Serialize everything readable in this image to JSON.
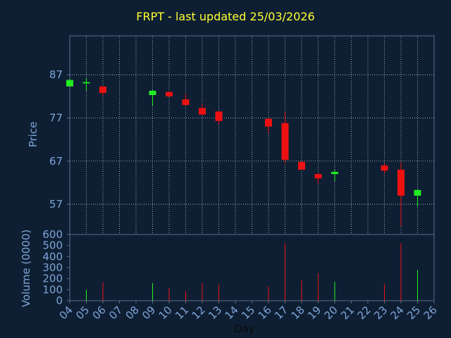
{
  "chart_data": {
    "type": "candlestick",
    "title": "FRPT - last updated 25/03/2026",
    "xlabel": "Day",
    "price_panel": {
      "ylabel": "Price",
      "ylim": [
        50,
        96
      ],
      "yticks": [
        57,
        67,
        77,
        87
      ],
      "grid": true
    },
    "volume_panel": {
      "ylabel": "Volume (0000)",
      "ylim": [
        0,
        600
      ],
      "yticks": [
        0,
        100,
        200,
        300,
        400,
        500,
        600
      ],
      "grid": false
    },
    "x_ticks": [
      "04",
      "05",
      "06",
      "07",
      "08",
      "09",
      "10",
      "11",
      "12",
      "13",
      "14",
      "15",
      "16",
      "17",
      "18",
      "19",
      "20",
      "21",
      "22",
      "23",
      "24",
      "25",
      "26"
    ],
    "candles": [
      {
        "day": "04",
        "open": 84.3,
        "close": 85.8,
        "high": 86.0,
        "low": 84.3,
        "volume": 0
      },
      {
        "day": "05",
        "open": 85.0,
        "close": 85.3,
        "high": 86.3,
        "low": 83.3,
        "volume": 100
      },
      {
        "day": "06",
        "open": 84.3,
        "close": 82.8,
        "high": 84.3,
        "low": 82.0,
        "volume": 165
      },
      {
        "day": "09",
        "open": 82.3,
        "close": 83.3,
        "high": 83.5,
        "low": 79.8,
        "volume": 160
      },
      {
        "day": "10",
        "open": 83.0,
        "close": 82.0,
        "high": 83.3,
        "low": 81.8,
        "volume": 115
      },
      {
        "day": "11",
        "open": 81.3,
        "close": 80.0,
        "high": 82.5,
        "low": 79.8,
        "volume": 85
      },
      {
        "day": "12",
        "open": 79.3,
        "close": 77.8,
        "high": 80.3,
        "low": 77.5,
        "volume": 160
      },
      {
        "day": "13",
        "open": 78.5,
        "close": 76.3,
        "high": 78.5,
        "low": 75.5,
        "volume": 150
      },
      {
        "day": "16",
        "open": 76.8,
        "close": 75.0,
        "high": 77.0,
        "low": 73.5,
        "volume": 130
      },
      {
        "day": "17",
        "open": 75.8,
        "close": 67.3,
        "high": 78.3,
        "low": 66.5,
        "volume": 520
      },
      {
        "day": "18",
        "open": 66.8,
        "close": 65.0,
        "high": 67.0,
        "low": 65.0,
        "volume": 185
      },
      {
        "day": "19",
        "open": 64.0,
        "close": 63.0,
        "high": 64.3,
        "low": 61.8,
        "volume": 250
      },
      {
        "day": "20",
        "open": 64.0,
        "close": 64.5,
        "high": 65.0,
        "low": 62.3,
        "volume": 170
      },
      {
        "day": "23",
        "open": 66.0,
        "close": 64.8,
        "high": 66.5,
        "low": 64.0,
        "volume": 150
      },
      {
        "day": "24",
        "open": 65.0,
        "close": 59.0,
        "high": 66.8,
        "low": 52.0,
        "volume": 520
      },
      {
        "day": "25",
        "open": 59.0,
        "close": 60.3,
        "high": 60.5,
        "low": 56.5,
        "volume": 280
      }
    ],
    "colors": {
      "up": "#22ee22",
      "down": "#ee1111",
      "background": "#0e1f33",
      "frame": "#5a6e88",
      "grid": "#b8c4d4",
      "tick_label": "#7fa4d8",
      "title": "#ffff33"
    }
  }
}
